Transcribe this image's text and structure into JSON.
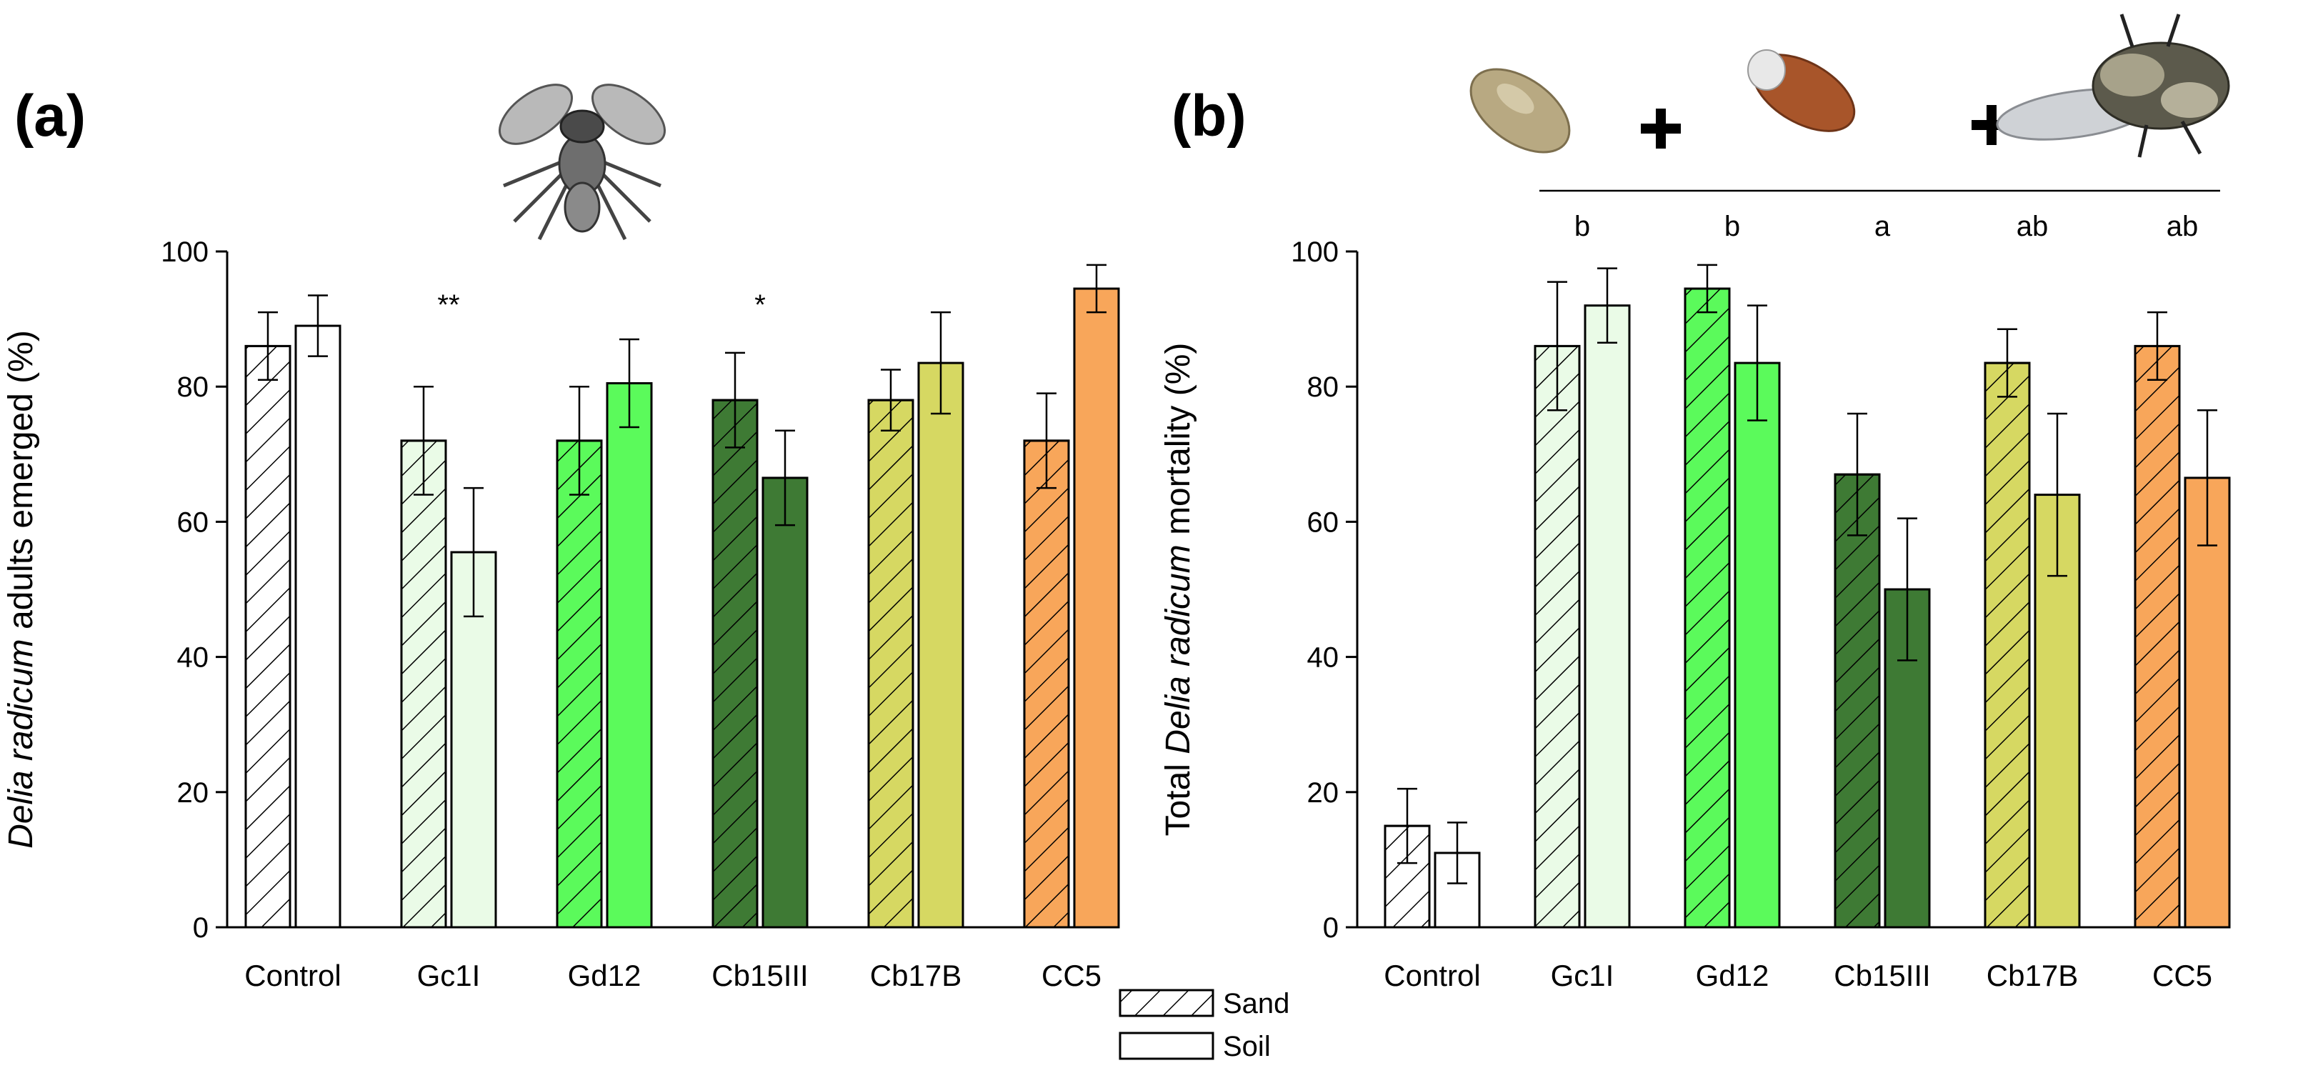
{
  "figure_title": "",
  "colors": {
    "control_sand": "#ffffff",
    "control_soil": "#ffffff",
    "Gc1I": "#eafbe7",
    "Gd12": "#5bfa5b",
    "Cb15III": "#3e7a34",
    "Cb17B": "#d6d862",
    "CC5": "#f8a65a",
    "outline": "#000000"
  },
  "icons": {
    "panel_a": "adult-fly-icon",
    "panel_b": [
      "pupa-icon",
      "plus-icon",
      "cocoon-icon",
      "plus-icon",
      "infected-fly-icon"
    ]
  },
  "legend": {
    "items": [
      {
        "label": "Sand",
        "pattern": "hatched"
      },
      {
        "label": "Soil",
        "pattern": "plain"
      }
    ]
  },
  "chart_data": [
    {
      "type": "bar",
      "panel_label": "(a)",
      "title": "",
      "xlabel": "",
      "ylabel_italic": "Delia radicum",
      "ylabel_rest": " adults emerged (%)",
      "ylim": [
        0,
        100
      ],
      "yticks": [
        0,
        20,
        40,
        60,
        80,
        100
      ],
      "categories": [
        "Control",
        "Gc1I",
        "Gd12",
        "Cb15III",
        "Cb17B",
        "CC5"
      ],
      "series": [
        {
          "name": "Sand",
          "values": [
            86,
            72,
            72,
            78,
            78,
            72
          ],
          "errors": [
            5,
            8,
            8,
            7,
            4.5,
            7
          ]
        },
        {
          "name": "Soil",
          "values": [
            89,
            55.5,
            80.5,
            66.5,
            83.5,
            94.5
          ],
          "errors": [
            4.5,
            9.5,
            6.5,
            7,
            7.5,
            3.5
          ]
        }
      ],
      "annotations": [
        {
          "category": "Gc1I",
          "text": "**"
        },
        {
          "category": "Cb15III",
          "text": "*"
        }
      ]
    },
    {
      "type": "bar",
      "panel_label": "(b)",
      "title": "",
      "xlabel": "",
      "ylabel_pre": "Total ",
      "ylabel_italic": "Delia radicum",
      "ylabel_rest": " mortality (%)",
      "ylim": [
        0,
        100
      ],
      "yticks": [
        0,
        20,
        40,
        60,
        80,
        100
      ],
      "categories": [
        "Control",
        "Gc1I",
        "Gd12",
        "Cb15III",
        "Cb17B",
        "CC5"
      ],
      "series": [
        {
          "name": "Sand",
          "values": [
            15,
            86,
            94.5,
            67,
            83.5,
            86
          ],
          "errors": [
            5.5,
            9.5,
            3.5,
            9,
            5,
            5
          ]
        },
        {
          "name": "Soil",
          "values": [
            11,
            92,
            83.5,
            50,
            64,
            66.5
          ],
          "errors": [
            4.5,
            5.5,
            8.5,
            10.5,
            12,
            10
          ]
        }
      ],
      "annotations": [
        {
          "category": "Gc1I",
          "text": "b"
        },
        {
          "category": "Gd12",
          "text": "b"
        },
        {
          "category": "Cb15III",
          "text": "a"
        },
        {
          "category": "Cb17B",
          "text": "ab"
        },
        {
          "category": "CC5",
          "text": "ab"
        }
      ]
    }
  ]
}
